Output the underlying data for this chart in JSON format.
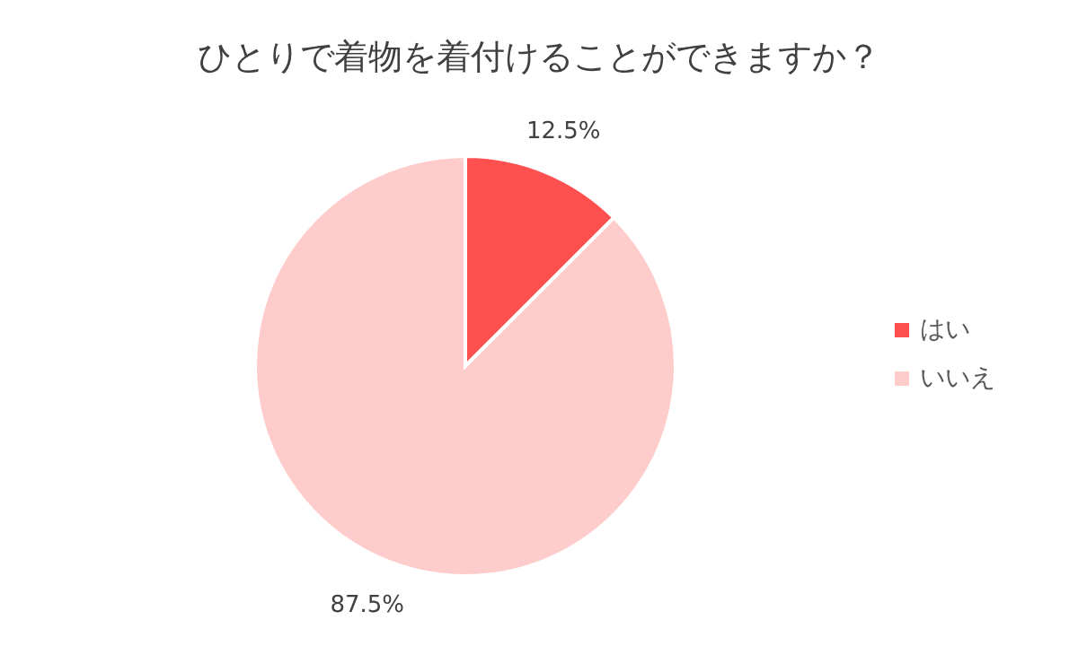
{
  "chart_data": {
    "type": "pie",
    "title": "ひとりで着物を着付けることができますか？",
    "categories": [
      "はい",
      "いいえ"
    ],
    "values": [
      12.5,
      87.5
    ],
    "colors": [
      "#ff5050",
      "#ffcccc"
    ],
    "value_labels": [
      "12.5%",
      "87.5%"
    ],
    "legend": "right"
  }
}
